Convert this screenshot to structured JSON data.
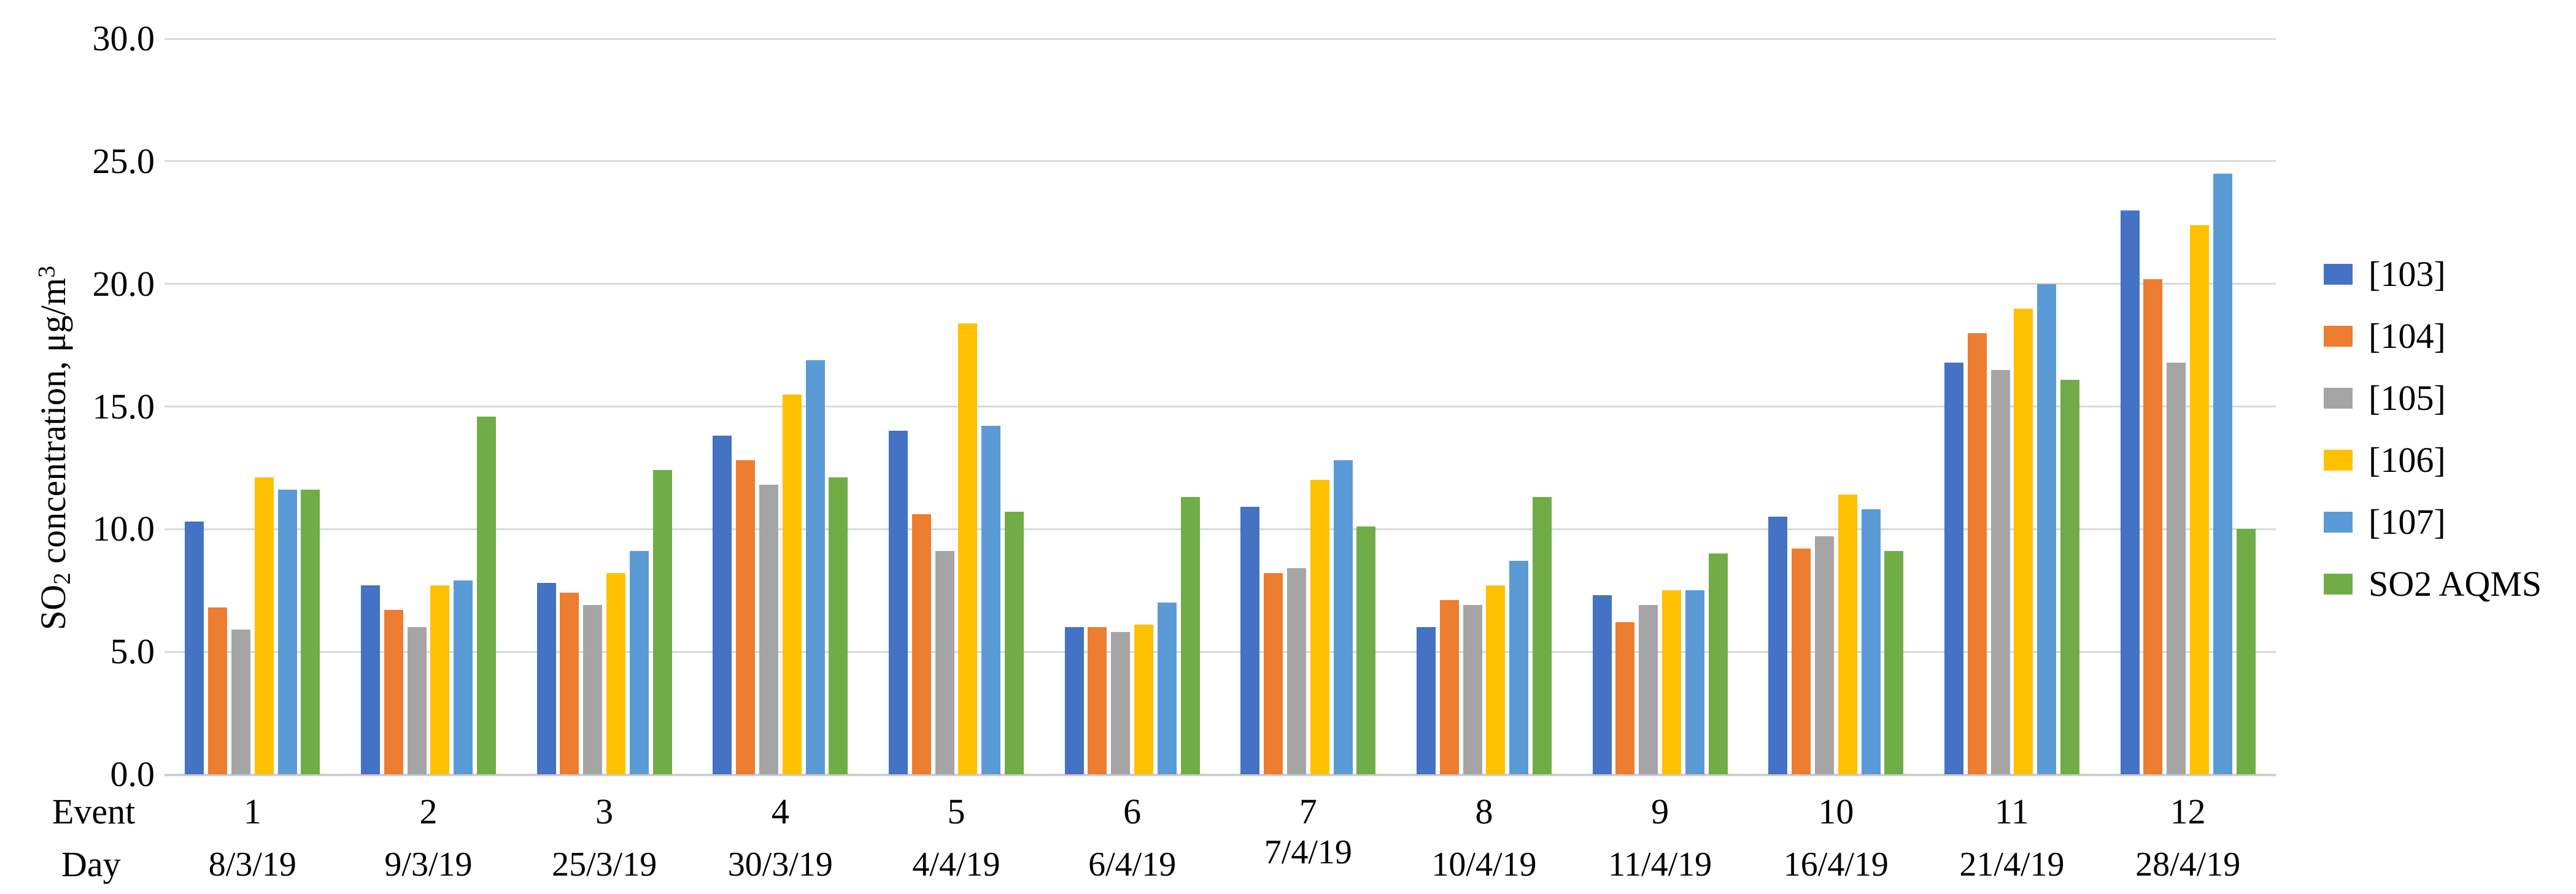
{
  "chart_data": {
    "type": "bar",
    "title": "",
    "ylabel": "SO2 concentration, μg/m3",
    "ylabel_parts": {
      "pre": "SO",
      "sub": "2",
      "mid": " concentration,  μg/m",
      "sup": "3"
    },
    "ylim": [
      0,
      30
    ],
    "ytick_step": 5,
    "yticks": [
      "30.0",
      "25.0",
      "20.0",
      "15.0",
      "10.0",
      "5.0",
      "0.0"
    ],
    "grid": true,
    "gridline_color": "#d9d9d9",
    "axis_line_color": "#d0cece",
    "legend_position": "right",
    "xrow_labels": [
      "Event",
      "Day"
    ],
    "categories": [
      "1",
      "2",
      "3",
      "4",
      "5",
      "6",
      "7",
      "8",
      "9",
      "10",
      "11",
      "12"
    ],
    "days": [
      "8/3/19",
      "9/3/19",
      "25/3/19",
      "30/3/19",
      "4/4/19",
      "6/4/19",
      "7/4/19",
      "10/4/19",
      "11/4/19",
      "16/4/19",
      "21/4/19",
      "28/4/19"
    ],
    "day_y_offsets": [
      0,
      0,
      0,
      0,
      0,
      0,
      -20,
      0,
      0,
      0,
      0,
      0
    ],
    "series": [
      {
        "name": "[103]",
        "color": "#4472C4",
        "values": [
          10.3,
          7.7,
          7.8,
          13.8,
          14.0,
          6.0,
          10.9,
          6.0,
          7.3,
          10.5,
          16.8,
          23.0
        ]
      },
      {
        "name": "[104]",
        "color": "#ED7D31",
        "values": [
          6.8,
          6.7,
          7.4,
          12.8,
          10.6,
          6.0,
          8.2,
          7.1,
          6.2,
          9.2,
          18.0,
          20.2
        ]
      },
      {
        "name": "[105]",
        "color": "#A5A5A5",
        "values": [
          5.9,
          6.0,
          6.9,
          11.8,
          9.1,
          5.8,
          8.4,
          6.9,
          6.9,
          9.7,
          16.5,
          16.8
        ]
      },
      {
        "name": "[106]",
        "color": "#FFC000",
        "values": [
          12.1,
          7.7,
          8.2,
          15.5,
          18.4,
          6.1,
          12.0,
          7.7,
          7.5,
          11.4,
          19.0,
          22.4
        ]
      },
      {
        "name": "[107]",
        "color": "#5B9BD5",
        "values": [
          11.6,
          7.9,
          9.1,
          16.9,
          14.2,
          7.0,
          12.8,
          8.7,
          7.5,
          10.8,
          20.0,
          24.5
        ]
      },
      {
        "name": "SO2 AQMS",
        "color": "#70AD47",
        "values": [
          11.6,
          14.6,
          12.4,
          12.1,
          10.7,
          11.3,
          10.1,
          11.3,
          9.0,
          9.1,
          16.1,
          10.0
        ]
      }
    ]
  }
}
